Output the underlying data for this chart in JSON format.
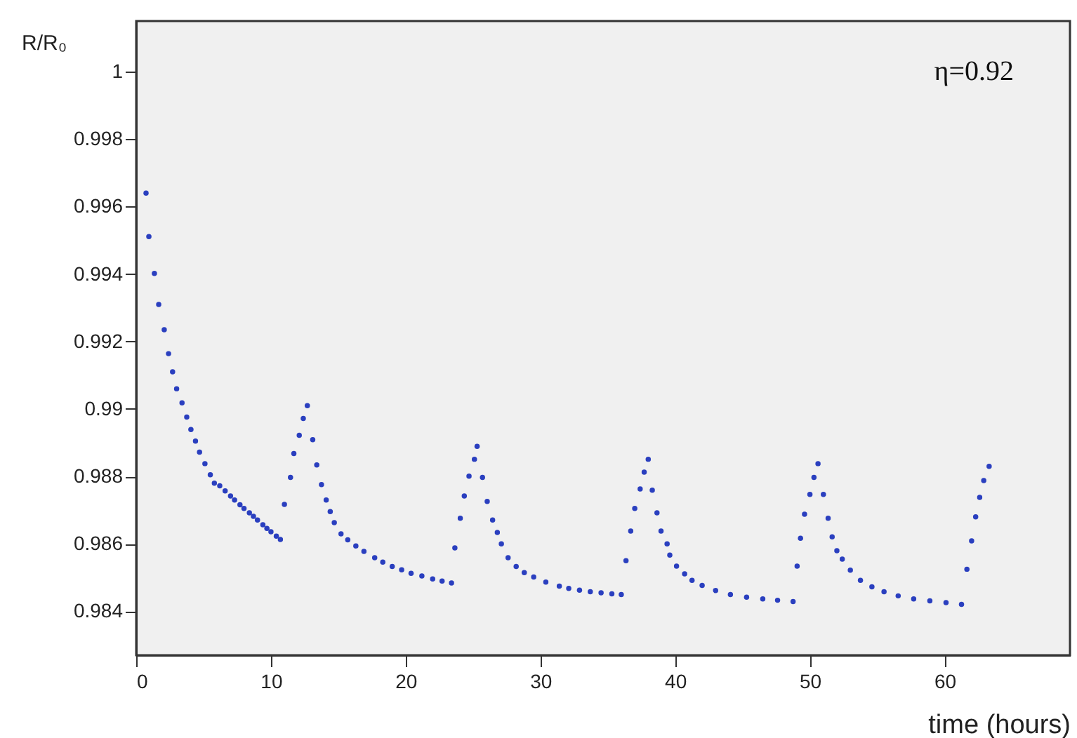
{
  "chart_data": {
    "type": "scatter",
    "xlabel": "time (hours)",
    "ylabel": "R/R₀",
    "annotations": [
      "η=0.92"
    ],
    "marker": "circle",
    "grid": false,
    "xlim": [
      0,
      69.3
    ],
    "xticks": [
      0,
      10,
      20,
      30,
      40,
      50,
      60
    ],
    "ylim": [
      0.9827,
      1.0015
    ],
    "yticks": [
      0.984,
      0.986,
      0.988,
      0.99,
      0.992,
      0.994,
      0.996,
      0.998,
      1
    ],
    "series": [
      {
        "color": "#2a3fbf",
        "x": [
          0.73,
          0.94,
          1.35,
          1.67,
          2.08,
          2.4,
          2.7,
          3.0,
          3.4,
          3.75,
          4.06,
          4.4,
          4.7,
          5.1,
          5.5,
          5.8,
          6.2,
          6.6,
          7.0,
          7.3,
          7.7,
          8.0,
          8.4,
          8.7,
          9.0,
          9.4,
          9.7,
          10.0,
          10.4,
          10.7,
          11.0,
          11.45,
          11.7,
          12.1,
          12.4,
          12.7,
          13.1,
          13.4,
          13.75,
          14.1,
          14.4,
          14.7,
          15.2,
          15.7,
          16.3,
          16.9,
          17.7,
          18.3,
          19.0,
          19.7,
          20.4,
          21.2,
          22.0,
          22.7,
          23.4,
          23.65,
          24.05,
          24.35,
          24.7,
          25.1,
          25.3,
          25.7,
          26.05,
          26.45,
          26.8,
          27.1,
          27.6,
          28.2,
          28.8,
          29.5,
          30.4,
          31.4,
          32.1,
          32.9,
          33.7,
          34.5,
          35.3,
          36.0,
          36.35,
          36.7,
          37.0,
          37.4,
          37.7,
          38.0,
          38.3,
          38.65,
          38.95,
          39.4,
          39.6,
          40.1,
          40.7,
          41.25,
          42.0,
          43.0,
          44.1,
          45.3,
          46.5,
          47.6,
          48.75,
          49.05,
          49.3,
          49.6,
          50.0,
          50.3,
          50.6,
          51.0,
          51.35,
          51.65,
          52.0,
          52.4,
          53.0,
          53.75,
          54.6,
          55.5,
          56.55,
          57.7,
          58.9,
          60.1,
          61.25,
          61.65,
          62.0,
          62.3,
          62.6,
          62.9,
          63.3
        ],
        "values": [
          0.9964,
          0.99511,
          0.99402,
          0.9931,
          0.99235,
          0.99164,
          0.9911,
          0.9906,
          0.99018,
          0.98976,
          0.98939,
          0.98905,
          0.98872,
          0.98838,
          0.98805,
          0.9878,
          0.98772,
          0.98757,
          0.98742,
          0.9873,
          0.98716,
          0.98705,
          0.98692,
          0.98682,
          0.98671,
          0.98657,
          0.98646,
          0.98636,
          0.98623,
          0.98613,
          0.98717,
          0.98797,
          0.98868,
          0.98922,
          0.98972,
          0.9901,
          0.98909,
          0.98834,
          0.98776,
          0.9873,
          0.98696,
          0.98663,
          0.9863,
          0.98612,
          0.98594,
          0.98578,
          0.98559,
          0.98546,
          0.98533,
          0.98523,
          0.98513,
          0.98505,
          0.98496,
          0.9849,
          0.98484,
          0.98588,
          0.98676,
          0.98742,
          0.98801,
          0.98851,
          0.98889,
          0.98797,
          0.98726,
          0.98671,
          0.98634,
          0.986,
          0.98559,
          0.98533,
          0.98515,
          0.98502,
          0.98487,
          0.98475,
          0.98468,
          0.98463,
          0.98458,
          0.98455,
          0.98452,
          0.9845,
          0.9855,
          0.98638,
          0.98705,
          0.98763,
          0.98813,
          0.98851,
          0.98759,
          0.98692,
          0.98638,
          0.986,
          0.98567,
          0.98534,
          0.98511,
          0.98492,
          0.98477,
          0.98462,
          0.9845,
          0.98442,
          0.98437,
          0.98433,
          0.98429,
          0.98534,
          0.98617,
          0.98688,
          0.98747,
          0.98797,
          0.98838,
          0.98747,
          0.98676,
          0.98621,
          0.9858,
          0.98555,
          0.98522,
          0.98492,
          0.98473,
          0.98458,
          0.98446,
          0.98437,
          0.98431,
          0.98426,
          0.98421,
          0.98525,
          0.98609,
          0.9868,
          0.98738,
          0.98788,
          0.9883
        ]
      }
    ]
  }
}
